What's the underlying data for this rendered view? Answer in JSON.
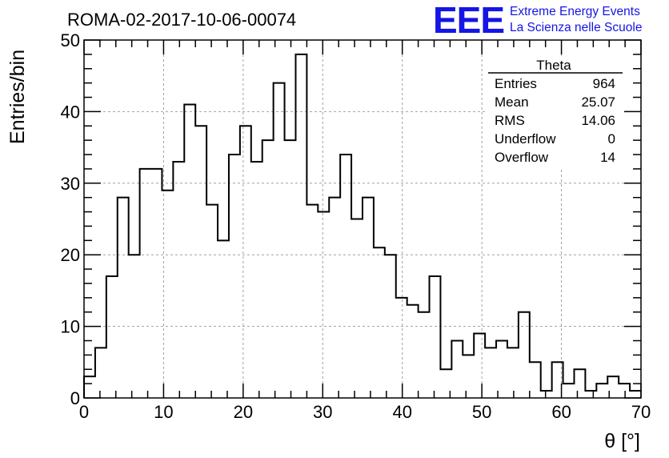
{
  "chart_data": {
    "type": "bar",
    "style": "step-histogram",
    "title": "ROMA-02-2017-10-06-00074",
    "xlabel": "θ [°]",
    "ylabel": "Entries/bin",
    "xlim": [
      0,
      70
    ],
    "ylim": [
      0,
      50
    ],
    "bin_width": 1.4,
    "x_ticks": [
      0,
      10,
      20,
      30,
      40,
      50,
      60,
      70
    ],
    "y_ticks": [
      0,
      10,
      20,
      30,
      40,
      50
    ],
    "grid": true,
    "values": [
      3,
      7,
      17,
      28,
      20,
      32,
      32,
      29,
      33,
      41,
      38,
      27,
      22,
      34,
      38,
      33,
      36,
      44,
      36,
      48,
      27,
      26,
      28,
      34,
      25,
      28,
      21,
      20,
      14,
      13,
      12,
      17,
      4,
      8,
      6,
      9,
      7,
      8,
      7,
      12,
      5,
      1,
      5,
      2,
      4,
      1,
      2,
      3,
      2,
      1
    ],
    "stats": {
      "name": "Theta",
      "rows": [
        {
          "label": "Entries",
          "value": "964"
        },
        {
          "label": "Mean",
          "value": "25.07"
        },
        {
          "label": "RMS",
          "value": "14.06"
        },
        {
          "label": "Underflow",
          "value": "0"
        },
        {
          "label": "Overflow",
          "value": "14"
        }
      ]
    },
    "colors": {
      "line": "#000000",
      "grid": "#a0a0a0",
      "logo": "#1515e6"
    }
  },
  "logo": {
    "mark": "EEE",
    "line1": "Extreme Energy Events",
    "line2": "La Scienza nelle Scuole"
  }
}
